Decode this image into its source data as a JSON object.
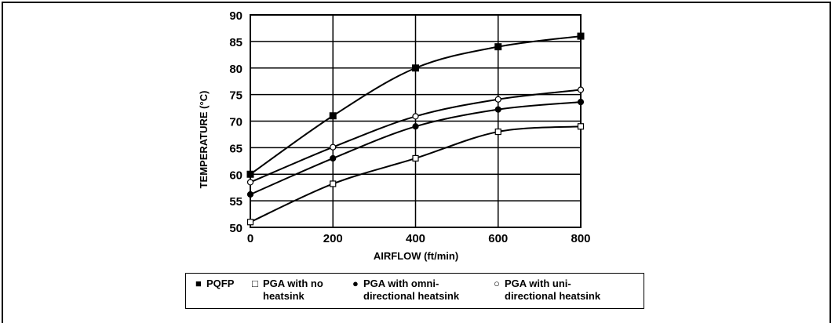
{
  "chart_data": {
    "type": "line",
    "xlabel": "AIRFLOW (ft/min)",
    "ylabel": "TEMPERATURE (°C)",
    "x": [
      0,
      200,
      400,
      600,
      800
    ],
    "xticks": [
      "0",
      "200",
      "400",
      "600",
      "800"
    ],
    "yticks": [
      "50",
      "55",
      "60",
      "65",
      "70",
      "75",
      "80",
      "85",
      "90"
    ],
    "xlim": [
      0,
      800
    ],
    "ylim": [
      50,
      90
    ],
    "grid": true,
    "legend_position": "bottom",
    "series": [
      {
        "name": "PQFP",
        "marker": "filled-square",
        "values": [
          60,
          71,
          80,
          84,
          86
        ]
      },
      {
        "name": "PGA with no heatsink",
        "marker": "open-square",
        "values": [
          51,
          58.2,
          63,
          68,
          69
        ]
      },
      {
        "name": "PGA with omni-directional heatsink",
        "marker": "filled-circle",
        "values": [
          56.2,
          63,
          69,
          72.2,
          73.6
        ]
      },
      {
        "name": "PGA with uni-directional heatsink",
        "marker": "open-circle",
        "values": [
          58.5,
          65.1,
          70.9,
          74.1,
          75.9
        ]
      }
    ]
  },
  "legend": [
    {
      "symbol": "■",
      "line1": "PQFP",
      "line2": ""
    },
    {
      "symbol": "□",
      "line1": "PGA with no",
      "line2": "heatsink"
    },
    {
      "symbol": "●",
      "line1": "PGA with omni-",
      "line2": "directional heatsink"
    },
    {
      "symbol": "○",
      "line1": "PGA with uni-",
      "line2": "directional heatsink"
    }
  ],
  "colors": {
    "line": "#000000",
    "grid": "#000000",
    "background": "#ffffff"
  }
}
